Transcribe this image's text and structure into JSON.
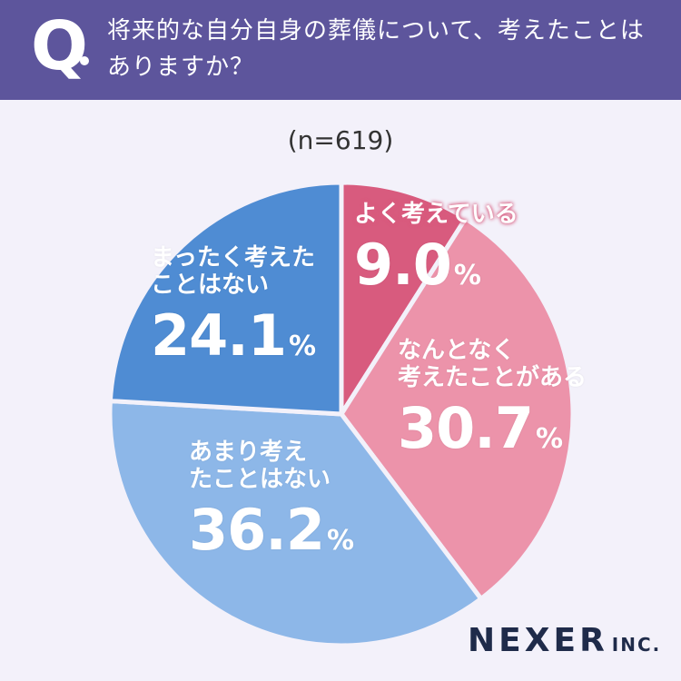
{
  "header": {
    "q_mark": "Q",
    "question": "将来的な自分自身の葬儀について、考えたことはありますか？"
  },
  "sample_size": "(n=619)",
  "chart_data": {
    "type": "pie",
    "title": "",
    "slices": [
      {
        "label": "よく考えている",
        "value": 9.0,
        "display": "9.0",
        "color": "#d85b7e"
      },
      {
        "label": "なんとなく考えたことがある",
        "value": 30.7,
        "display": "30.7",
        "color": "#ec93aa"
      },
      {
        "label": "あまり考えたことはない",
        "value": 36.2,
        "display": "36.2",
        "color": "#8db7e8"
      },
      {
        "label": "まったく考えたことはない",
        "value": 24.1,
        "display": "24.1",
        "color": "#4f8cd3"
      }
    ],
    "unit": "%"
  },
  "brand": {
    "name": "NEXER",
    "suffix": "INC."
  }
}
